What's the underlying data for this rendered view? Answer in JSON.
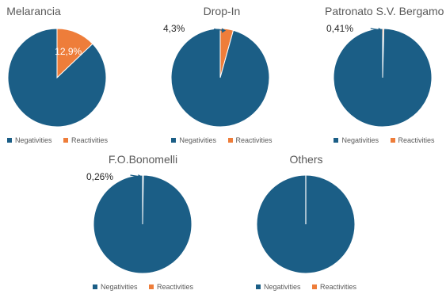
{
  "colors": {
    "negatives": "#1b5e86",
    "reactivities": "#ee7d3a",
    "arrow": "#1b5e86",
    "separator": "#ffffff"
  },
  "legend": {
    "neg_label": "Negativities",
    "react_label": "Reactivities"
  },
  "chart_data": [
    {
      "type": "pie",
      "title": "Melarancia",
      "categories": [
        "Negativities",
        "Reactivities"
      ],
      "values": [
        87.1,
        12.9
      ],
      "data_labels": [
        "",
        "12,9%"
      ],
      "label_style": "inside"
    },
    {
      "type": "pie",
      "title": "Drop-In",
      "categories": [
        "Negativities",
        "Reactivities"
      ],
      "values": [
        95.7,
        4.3
      ],
      "data_labels": [
        "",
        "4,3%"
      ],
      "label_style": "callout"
    },
    {
      "type": "pie",
      "title": "Patronato S.V. Bergamo",
      "categories": [
        "Negativities",
        "Reactivities"
      ],
      "values": [
        99.59,
        0.41
      ],
      "data_labels": [
        "",
        "0,41%"
      ],
      "label_style": "callout"
    },
    {
      "type": "pie",
      "title": "F.O.Bonomelli",
      "categories": [
        "Negativities",
        "Reactivities"
      ],
      "values": [
        99.74,
        0.26
      ],
      "data_labels": [
        "",
        "0,26%"
      ],
      "label_style": "callout"
    },
    {
      "type": "pie",
      "title": "Others",
      "categories": [
        "Negativities",
        "Reactivities"
      ],
      "values": [
        100,
        0
      ],
      "data_labels": [
        "",
        ""
      ],
      "label_style": "none"
    }
  ]
}
